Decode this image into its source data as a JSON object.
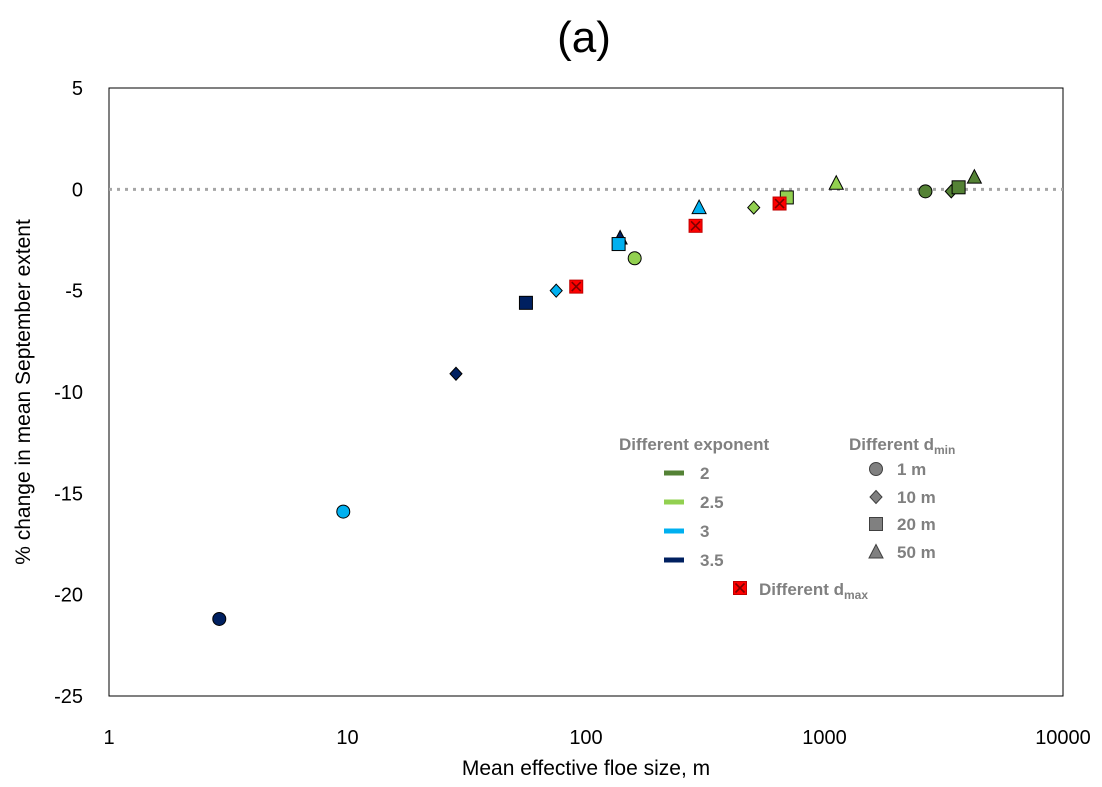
{
  "chart_data": {
    "type": "scatter",
    "title": "(a)",
    "xlabel": "Mean effective floe size, m",
    "ylabel": "% change in mean September extent",
    "x_scale": "log",
    "xlim": [
      1,
      10000
    ],
    "ylim": [
      -25,
      5
    ],
    "x_ticks": [
      "1",
      "10",
      "100",
      "1000",
      "10000"
    ],
    "y_ticks": [
      "5",
      "0",
      "-5",
      "-10",
      "-15",
      "-20",
      "-25"
    ],
    "reference_line": {
      "y": 0,
      "style": "dotted"
    },
    "colors": {
      "2": "#548235",
      "2.5": "#92d050",
      "3": "#00b0f0",
      "3.5": "#002060",
      "dmax": "#ff0000",
      "dmin_legend": "#808080"
    },
    "legend": {
      "exponent_heading": "Different exponent",
      "exponents": [
        "2",
        "2.5",
        "3",
        "3.5"
      ],
      "dmin_heading_main": "Different d",
      "dmin_heading_sub": "min",
      "dmin_items": [
        {
          "marker": "circle",
          "label": "1 m"
        },
        {
          "marker": "diamond",
          "label": "10 m"
        },
        {
          "marker": "square",
          "label": "20 m"
        },
        {
          "marker": "triangle",
          "label": "50 m"
        }
      ],
      "dmax_main": "Different d",
      "dmax_sub": "max"
    },
    "points": [
      {
        "x": 2.9,
        "y": -21.2,
        "exponent": "3.5",
        "marker": "circle"
      },
      {
        "x": 28.5,
        "y": -9.1,
        "exponent": "3.5",
        "marker": "diamond"
      },
      {
        "x": 56,
        "y": -5.6,
        "exponent": "3.5",
        "marker": "square"
      },
      {
        "x": 139,
        "y": -2.4,
        "exponent": "3.5",
        "marker": "triangle"
      },
      {
        "x": 9.6,
        "y": -15.9,
        "exponent": "3",
        "marker": "circle"
      },
      {
        "x": 75,
        "y": -5.0,
        "exponent": "3",
        "marker": "diamond"
      },
      {
        "x": 137,
        "y": -2.7,
        "exponent": "3",
        "marker": "square"
      },
      {
        "x": 298,
        "y": -0.9,
        "exponent": "3",
        "marker": "triangle"
      },
      {
        "x": 160,
        "y": -3.4,
        "exponent": "2.5",
        "marker": "circle"
      },
      {
        "x": 505,
        "y": -0.9,
        "exponent": "2.5",
        "marker": "diamond"
      },
      {
        "x": 695,
        "y": -0.4,
        "exponent": "2.5",
        "marker": "square"
      },
      {
        "x": 1120,
        "y": 0.3,
        "exponent": "2.5",
        "marker": "triangle"
      },
      {
        "x": 2650,
        "y": -0.1,
        "exponent": "2",
        "marker": "circle"
      },
      {
        "x": 3400,
        "y": -0.1,
        "exponent": "2",
        "marker": "diamond"
      },
      {
        "x": 3650,
        "y": 0.1,
        "exponent": "2",
        "marker": "square"
      },
      {
        "x": 4250,
        "y": 0.6,
        "exponent": "2",
        "marker": "triangle"
      },
      {
        "x": 91,
        "y": -4.8,
        "exponent": "dmax",
        "marker": "dmax"
      },
      {
        "x": 288,
        "y": -1.8,
        "exponent": "dmax",
        "marker": "dmax"
      },
      {
        "x": 648,
        "y": -0.7,
        "exponent": "dmax",
        "marker": "dmax"
      }
    ]
  }
}
